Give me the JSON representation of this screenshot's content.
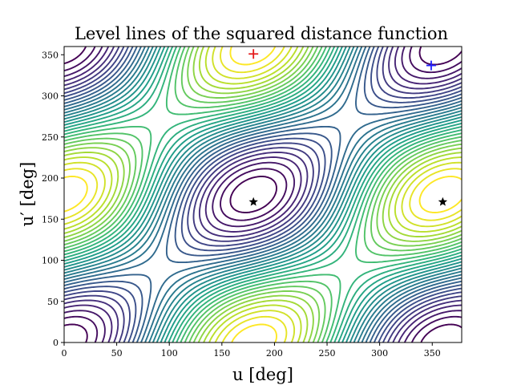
{
  "chart_data": {
    "type": "contour",
    "title": "Level lines of the squared distance function",
    "xlabel": "u [deg]",
    "ylabel": "u′ [deg]",
    "xlim": [
      0,
      378
    ],
    "ylim": [
      0,
      360
    ],
    "xticks": [
      0,
      50,
      100,
      150,
      200,
      250,
      300,
      350
    ],
    "yticks": [
      0,
      50,
      100,
      150,
      200,
      250,
      300,
      350
    ],
    "colormap": "viridis",
    "grid": false,
    "level_count": 30,
    "markers": [
      {
        "label": "plus",
        "symbol": "plus",
        "color": "#e41a1c",
        "x": 180,
        "y": 351
      },
      {
        "label": "plus",
        "symbol": "plus",
        "color": "#1f1fff",
        "x": 349,
        "y": 337
      },
      {
        "label": "star",
        "symbol": "star",
        "color": "#000000",
        "x": 180,
        "y": 171
      },
      {
        "label": "star",
        "symbol": "star",
        "color": "#000000",
        "x": 360,
        "y": 171
      }
    ]
  }
}
